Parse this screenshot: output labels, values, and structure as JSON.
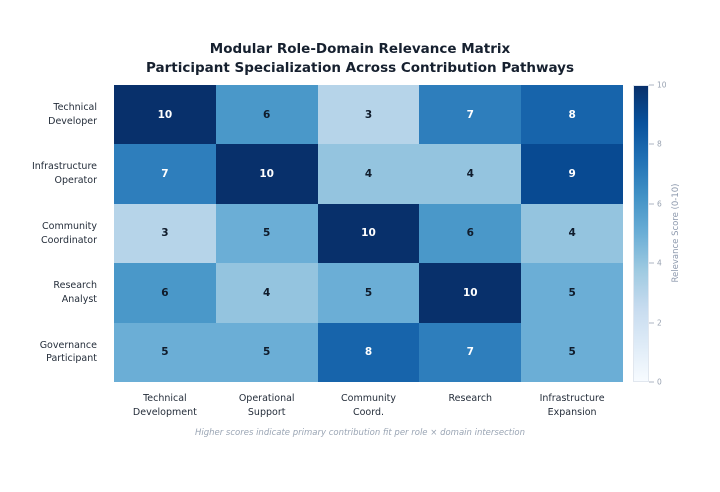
{
  "chart_data": {
    "type": "heatmap",
    "title": "Modular Role-Domain Relevance Matrix",
    "subtitle": "Participant Specialization Across Contribution Pathways",
    "rows": [
      "Technical\nDeveloper",
      "Infrastructure\nOperator",
      "Community\nCoordinator",
      "Research\nAnalyst",
      "Governance\nParticipant"
    ],
    "columns": [
      "Technical\nDevelopment",
      "Operational\nSupport",
      "Community\nCoord.",
      "Research",
      "Infrastructure\nExpansion"
    ],
    "values": [
      [
        10,
        6,
        3,
        7,
        8
      ],
      [
        7,
        10,
        4,
        4,
        9
      ],
      [
        3,
        5,
        10,
        6,
        4
      ],
      [
        6,
        4,
        5,
        10,
        5
      ],
      [
        5,
        5,
        8,
        7,
        5
      ]
    ],
    "colormap": "Blues",
    "value_colors": {
      "3": "#b6d4e9",
      "4": "#94c4df",
      "5": "#6baed6",
      "6": "#4a98c9",
      "7": "#2e7ebc",
      "8": "#1764ab",
      "9": "#084a92",
      "10": "#08306b"
    },
    "annotation_text_dark": "#101c2c",
    "annotation_text_light": "#ffffff",
    "annotation_light_threshold": 7,
    "colorbar": {
      "label": "Relevance Score (0-10)",
      "min": 0,
      "max": 10,
      "ticks": [
        "0",
        "2",
        "4",
        "6",
        "8",
        "10"
      ],
      "gradient_bottom_to_top": [
        "#f7fbff",
        "#deebf7",
        "#c6dbef",
        "#9ecae1",
        "#6baed6",
        "#4292c6",
        "#2171b5",
        "#08519c",
        "#08306b"
      ]
    },
    "footnote": "Higher scores indicate primary contribution fit per role × domain intersection",
    "grid": false,
    "legend_position": "right-colorbar"
  }
}
